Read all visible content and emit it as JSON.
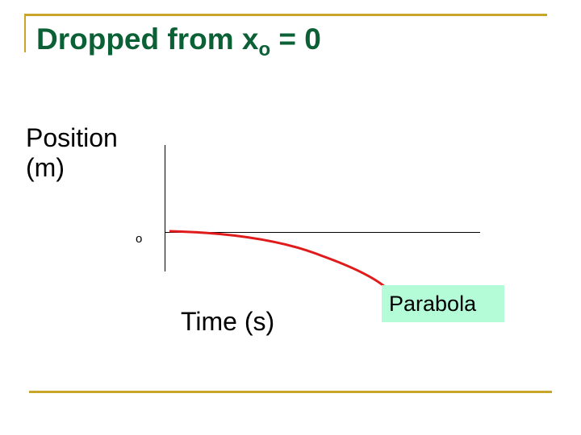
{
  "slide": {
    "title_main": "Dropped from x",
    "title_sub": "o",
    "title_tail": " = 0",
    "y_label_line1": "Position",
    "y_label_line2": "(m)",
    "x_label": "Time (s)",
    "origin_label": "o",
    "curve_label": "Parabola"
  },
  "colors": {
    "title": "#0b6135",
    "rule": "#c8a62a",
    "curve": "#e01b1b",
    "callout": "#b3fcd7"
  }
}
